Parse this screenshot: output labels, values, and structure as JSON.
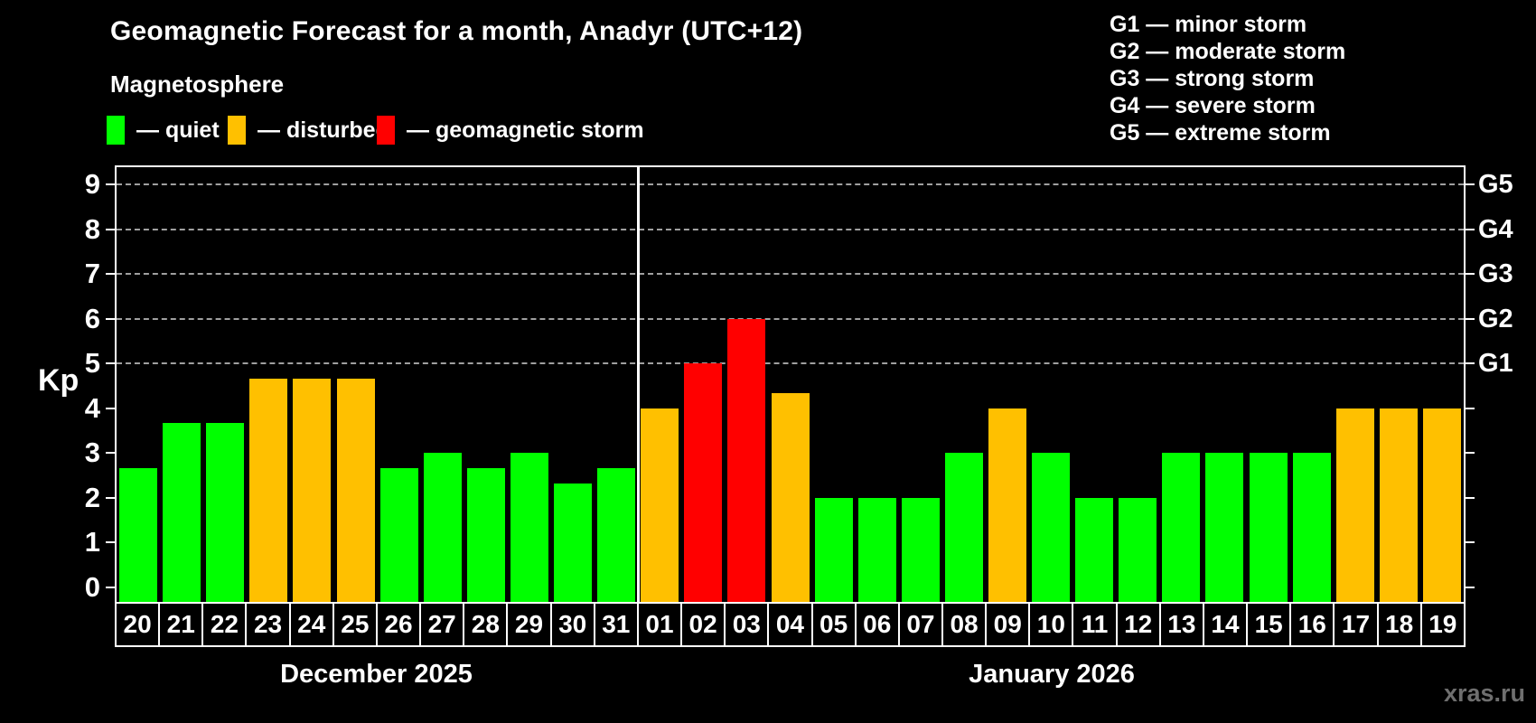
{
  "title": "Geomagnetic Forecast for a month, Anadyr (UTC+12)",
  "subtitle": "Magnetosphere",
  "legend": {
    "items": [
      {
        "state": "quiet",
        "label": "— quiet"
      },
      {
        "state": "disturbed",
        "label": "— disturbed"
      },
      {
        "state": "storm",
        "label": "— geomagnetic storm"
      }
    ]
  },
  "g_scale_legend": [
    "G1 — minor storm",
    "G2 — moderate storm",
    "G3 — strong storm",
    "G4 — severe storm",
    "G5 — extreme storm"
  ],
  "axis": {
    "y_label": "Kp",
    "y_ticks": [
      0,
      1,
      2,
      3,
      4,
      5,
      6,
      7,
      8,
      9
    ],
    "right_labels": [
      {
        "label": "G5",
        "kp": 9
      },
      {
        "label": "G4",
        "kp": 8
      },
      {
        "label": "G3",
        "kp": 7
      },
      {
        "label": "G2",
        "kp": 6
      },
      {
        "label": "G1",
        "kp": 5
      }
    ]
  },
  "months": [
    {
      "label": "December 2025",
      "days": 12
    },
    {
      "label": "January 2026",
      "days": 19
    }
  ],
  "colors": {
    "quiet": "#00ff00",
    "disturbed": "#ffc000",
    "storm": "#ff0000",
    "grid": "#a0a0a0",
    "axis": "#ffffff",
    "watermark": "#6f6f6f"
  },
  "watermark": "xras.ru",
  "chart_data": {
    "type": "bar",
    "title": "Geomagnetic Forecast for a month, Anadyr (UTC+12)",
    "xlabel": "",
    "ylabel": "Kp",
    "ylim": [
      0,
      9
    ],
    "gridlines_at": [
      5,
      6,
      7,
      8,
      9
    ],
    "legend_position": "top",
    "categories": [
      "20",
      "21",
      "22",
      "23",
      "24",
      "25",
      "26",
      "27",
      "28",
      "29",
      "30",
      "31",
      "01",
      "02",
      "03",
      "04",
      "05",
      "06",
      "07",
      "08",
      "09",
      "10",
      "11",
      "12",
      "13",
      "14",
      "15",
      "16",
      "17",
      "18",
      "19"
    ],
    "values": [
      2.67,
      3.67,
      3.67,
      4.67,
      4.67,
      4.67,
      2.67,
      3,
      2.67,
      3,
      2.33,
      2.67,
      4,
      5,
      6,
      4.33,
      2,
      2,
      2,
      3,
      4,
      3,
      2,
      2,
      3,
      3,
      3,
      3,
      4,
      4,
      4
    ],
    "states": [
      "quiet",
      "quiet",
      "quiet",
      "disturbed",
      "disturbed",
      "disturbed",
      "quiet",
      "quiet",
      "quiet",
      "quiet",
      "quiet",
      "quiet",
      "disturbed",
      "storm",
      "storm",
      "disturbed",
      "quiet",
      "quiet",
      "quiet",
      "quiet",
      "disturbed",
      "quiet",
      "quiet",
      "quiet",
      "quiet",
      "quiet",
      "quiet",
      "quiet",
      "disturbed",
      "disturbed",
      "disturbed"
    ]
  }
}
